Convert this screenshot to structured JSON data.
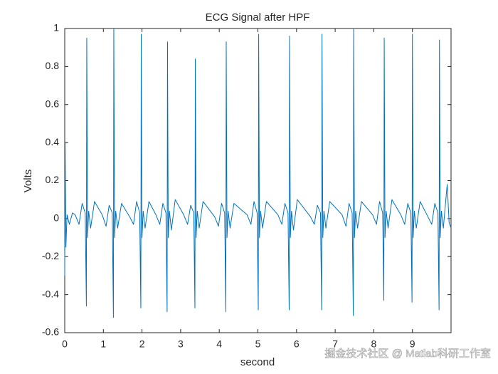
{
  "chart_data": {
    "type": "line",
    "title": "ECG Signal after HPF",
    "xlabel": "second",
    "ylabel": "Volts",
    "color": "#0072bd",
    "x": [
      0,
      0.01,
      0.03,
      0.06,
      0.12,
      0.2,
      0.27,
      0.37,
      0.45,
      0.53,
      0.56,
      0.57,
      0.59,
      0.62,
      0.67,
      0.77,
      0.97,
      1.07,
      1.15,
      1.23,
      1.26,
      1.27,
      1.29,
      1.32,
      1.37,
      1.47,
      1.68,
      1.78,
      1.86,
      1.94,
      1.97,
      1.98,
      2.0,
      2.03,
      2.08,
      2.18,
      2.36,
      2.46,
      2.54,
      2.62,
      2.65,
      2.66,
      2.68,
      2.71,
      2.76,
      2.86,
      3.08,
      3.18,
      3.26,
      3.34,
      3.37,
      3.38,
      3.4,
      3.43,
      3.48,
      3.58,
      3.88,
      3.98,
      4.06,
      4.14,
      4.17,
      4.18,
      4.2,
      4.23,
      4.28,
      4.38,
      4.72,
      4.82,
      4.9,
      4.98,
      5.01,
      5.02,
      5.04,
      5.07,
      5.12,
      5.22,
      5.52,
      5.62,
      5.7,
      5.78,
      5.81,
      5.82,
      5.84,
      5.87,
      5.92,
      6.02,
      6.36,
      6.46,
      6.54,
      6.62,
      6.65,
      6.66,
      6.68,
      6.71,
      6.76,
      6.86,
      7.18,
      7.28,
      7.36,
      7.44,
      7.47,
      7.48,
      7.5,
      7.53,
      7.58,
      7.68,
      7.97,
      8.07,
      8.15,
      8.23,
      8.26,
      8.27,
      8.29,
      8.32,
      8.37,
      8.47,
      8.7,
      8.8,
      8.88,
      8.96,
      8.99,
      9.0,
      9.02,
      9.05,
      9.1,
      9.2,
      9.4,
      9.5,
      9.58,
      9.66,
      9.69,
      9.7,
      9.72,
      9.75,
      9.8,
      9.9,
      9.95,
      10
    ],
    "values": [
      -0.3,
      0.4,
      -0.15,
      0.02,
      -0.03,
      0.03,
      0.02,
      -0.03,
      0.08,
      0.03,
      -0.46,
      0.95,
      -0.1,
      0.04,
      -0.05,
      0.09,
      0.02,
      -0.04,
      0.07,
      0.03,
      -0.52,
      1.0,
      -0.1,
      0.04,
      -0.05,
      0.08,
      0.01,
      -0.03,
      0.09,
      0.03,
      -0.47,
      0.97,
      -0.1,
      0.04,
      -0.05,
      0.09,
      0.02,
      -0.03,
      0.08,
      0.03,
      -0.49,
      0.93,
      -0.1,
      0.04,
      -0.06,
      0.1,
      0.02,
      -0.03,
      0.07,
      0.03,
      -0.47,
      0.84,
      -0.1,
      0.04,
      -0.05,
      0.09,
      0.01,
      -0.04,
      0.08,
      0.03,
      -0.49,
      0.93,
      -0.1,
      0.04,
      -0.05,
      0.08,
      0.02,
      -0.03,
      0.09,
      0.03,
      -0.48,
      0.97,
      -0.1,
      0.04,
      -0.05,
      0.09,
      0.02,
      -0.03,
      0.08,
      0.03,
      -0.48,
      0.96,
      -0.1,
      0.04,
      -0.06,
      0.1,
      0.01,
      -0.03,
      0.07,
      0.03,
      -0.48,
      0.97,
      -0.1,
      0.04,
      -0.05,
      0.09,
      0.02,
      -0.04,
      0.08,
      0.03,
      -0.51,
      1.0,
      -0.1,
      0.04,
      -0.05,
      0.09,
      0.02,
      -0.03,
      0.09,
      0.03,
      -0.43,
      0.95,
      -0.1,
      0.04,
      -0.05,
      0.1,
      0.02,
      -0.03,
      0.08,
      0.03,
      -0.44,
      0.97,
      -0.1,
      0.04,
      -0.05,
      0.09,
      0.01,
      -0.03,
      0.08,
      0.03,
      -0.48,
      0.94,
      -0.1,
      0.04,
      -0.05,
      0.18,
      -0.02,
      -0.05
    ],
    "xlim": [
      0,
      10
    ],
    "xticks": [
      0,
      1,
      2,
      3,
      4,
      5,
      6,
      7,
      8,
      9
    ],
    "ylim": [
      -0.6,
      1
    ],
    "yticks": [
      -0.6,
      -0.4,
      -0.2,
      0,
      0.2,
      0.4,
      0.6,
      0.8,
      1
    ],
    "watermark": "掘金技术社区 @ Matlab科研工作室"
  }
}
